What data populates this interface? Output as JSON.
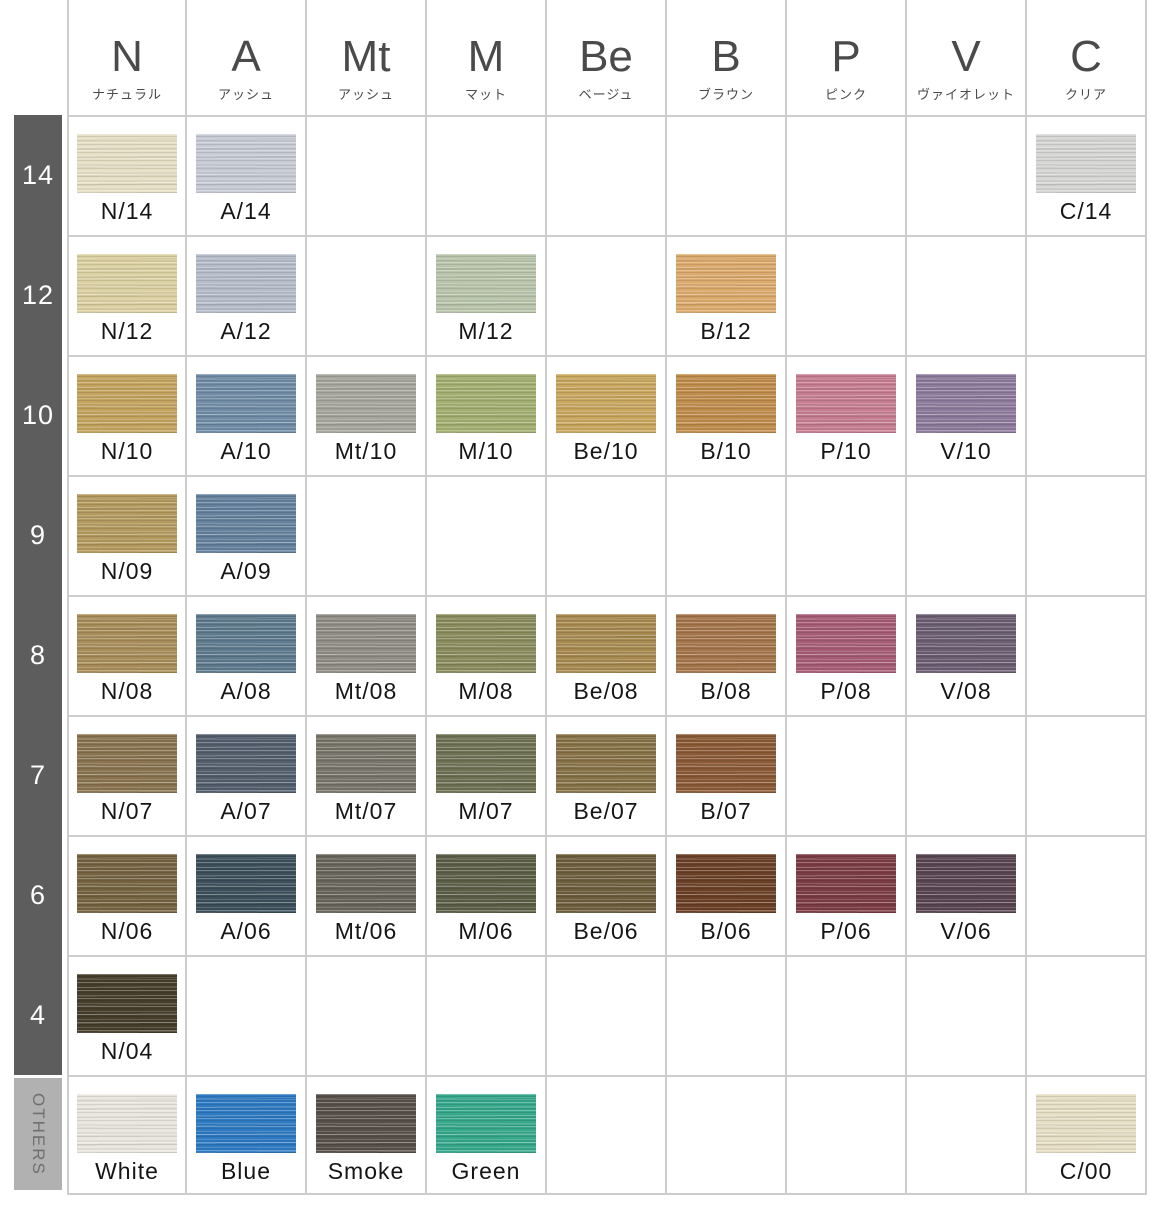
{
  "chart_data": {
    "type": "table",
    "title": "",
    "legend_position": "none",
    "grid": true,
    "palette": {
      "grid_line": "#cdcdcd",
      "row_bar_dark": "#5d5d5d",
      "row_bar_light": "#b1b1b1",
      "header_text": "#4a4a4a",
      "row_label_text": "#ffffff",
      "others_label_text": "#6f6f6f",
      "swatch_label_text": "#151515",
      "background": "#ffffff"
    },
    "columns": [
      {
        "key": "N",
        "label_jp": "ナチュラル"
      },
      {
        "key": "A",
        "label_jp": "アッシュ"
      },
      {
        "key": "Mt",
        "label_jp": "アッシュ"
      },
      {
        "key": "M",
        "label_jp": "マット"
      },
      {
        "key": "Be",
        "label_jp": "ベージュ"
      },
      {
        "key": "B",
        "label_jp": "ブラウン"
      },
      {
        "key": "P",
        "label_jp": "ピンク"
      },
      {
        "key": "V",
        "label_jp": "ヴァイオレット"
      },
      {
        "key": "C",
        "label_jp": "クリア"
      }
    ],
    "rows": [
      {
        "level": "14",
        "bar": "dark",
        "swatches": [
          {
            "column": "N",
            "code": "N/14",
            "color": "#e7e0c6"
          },
          {
            "column": "A",
            "code": "A/14",
            "color": "#c7cbd5"
          },
          {
            "column": "C",
            "code": "C/14",
            "color": "#d6d6d4"
          }
        ]
      },
      {
        "level": "12",
        "bar": "dark",
        "swatches": [
          {
            "column": "N",
            "code": "N/12",
            "color": "#dcd1a2"
          },
          {
            "column": "A",
            "code": "A/12",
            "color": "#b5bdca"
          },
          {
            "column": "M",
            "code": "M/12",
            "color": "#b8c5ab"
          },
          {
            "column": "B",
            "code": "B/12",
            "color": "#dcaa6c"
          }
        ]
      },
      {
        "level": "10",
        "bar": "dark",
        "swatches": [
          {
            "column": "N",
            "code": "N/10",
            "color": "#c4a45f"
          },
          {
            "column": "A",
            "code": "A/10",
            "color": "#708ca6"
          },
          {
            "column": "Mt",
            "code": "Mt/10",
            "color": "#a7a69c"
          },
          {
            "column": "M",
            "code": "M/10",
            "color": "#a2af70"
          },
          {
            "column": "Be",
            "code": "Be/10",
            "color": "#c9a75e"
          },
          {
            "column": "B",
            "code": "B/10",
            "color": "#c08c4b"
          },
          {
            "column": "P",
            "code": "P/10",
            "color": "#c67d92"
          },
          {
            "column": "V",
            "code": "V/10",
            "color": "#8d7a9c"
          }
        ]
      },
      {
        "level": "9",
        "bar": "dark",
        "swatches": [
          {
            "column": "N",
            "code": "N/09",
            "color": "#b49a5e"
          },
          {
            "column": "A",
            "code": "A/09",
            "color": "#64819d"
          }
        ]
      },
      {
        "level": "8",
        "bar": "dark",
        "swatches": [
          {
            "column": "N",
            "code": "N/08",
            "color": "#a88d59"
          },
          {
            "column": "A",
            "code": "A/08",
            "color": "#5e7a8d"
          },
          {
            "column": "Mt",
            "code": "Mt/08",
            "color": "#8f8d84"
          },
          {
            "column": "M",
            "code": "M/08",
            "color": "#8a8c5d"
          },
          {
            "column": "Be",
            "code": "Be/08",
            "color": "#a88a50"
          },
          {
            "column": "B",
            "code": "B/08",
            "color": "#a4754a"
          },
          {
            "column": "P",
            "code": "P/08",
            "color": "#a75c75"
          },
          {
            "column": "V",
            "code": "V/08",
            "color": "#6c5e73"
          }
        ]
      },
      {
        "level": "7",
        "bar": "dark",
        "swatches": [
          {
            "column": "N",
            "code": "N/07",
            "color": "#8a7450"
          },
          {
            "column": "A",
            "code": "A/07",
            "color": "#535f6d"
          },
          {
            "column": "Mt",
            "code": "Mt/07",
            "color": "#78766a"
          },
          {
            "column": "M",
            "code": "M/07",
            "color": "#6f7153"
          },
          {
            "column": "Be",
            "code": "Be/07",
            "color": "#877247"
          },
          {
            "column": "B",
            "code": "B/07",
            "color": "#8a5a36"
          }
        ]
      },
      {
        "level": "6",
        "bar": "dark",
        "swatches": [
          {
            "column": "N",
            "code": "N/06",
            "color": "#766341"
          },
          {
            "column": "A",
            "code": "A/06",
            "color": "#3c4f5a"
          },
          {
            "column": "Mt",
            "code": "Mt/06",
            "color": "#68655a"
          },
          {
            "column": "M",
            "code": "M/06",
            "color": "#5c5f46"
          },
          {
            "column": "Be",
            "code": "Be/06",
            "color": "#6d5e3c"
          },
          {
            "column": "B",
            "code": "B/06",
            "color": "#6b4026"
          },
          {
            "column": "P",
            "code": "P/06",
            "color": "#7c3c44"
          },
          {
            "column": "V",
            "code": "V/06",
            "color": "#594551"
          }
        ]
      },
      {
        "level": "4",
        "bar": "dark",
        "swatches": [
          {
            "column": "N",
            "code": "N/04",
            "color": "#463e2b"
          }
        ]
      },
      {
        "level": "OTHERS",
        "bar": "light",
        "swatches": [
          {
            "column": "N",
            "code": "White",
            "color": "#e9e6dd"
          },
          {
            "column": "A",
            "code": "Blue",
            "color": "#2e7ac3"
          },
          {
            "column": "Mt",
            "code": "Smoke",
            "color": "#565049"
          },
          {
            "column": "M",
            "code": "Green",
            "color": "#36a88c"
          },
          {
            "column": "C",
            "code": "C/00",
            "color": "#e7dfc5"
          }
        ]
      }
    ]
  }
}
